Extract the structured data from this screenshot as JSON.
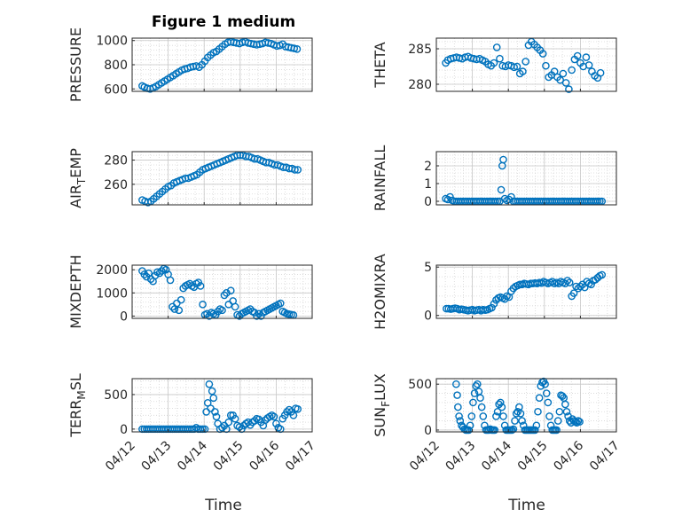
{
  "figure": {
    "title": "Figure 1 medium",
    "xlabel": "Time",
    "x_ticks": [
      "04/12",
      "04/13",
      "04/14",
      "04/15",
      "04/16",
      "04/17"
    ]
  },
  "chart_data": [
    {
      "type": "scatter",
      "title": "Figure 1 medium",
      "ylabel": "PRESSURE",
      "ylabel_html": [
        "PRESSURE"
      ],
      "xlim": [
        0,
        5
      ],
      "ylim": [
        580,
        1020
      ],
      "yticks": [
        600,
        800,
        1000
      ],
      "color": "#0072BD",
      "x": [
        0.28,
        0.34,
        0.42,
        0.5,
        0.58,
        0.66,
        0.74,
        0.82,
        0.9,
        0.98,
        1.06,
        1.14,
        1.22,
        1.3,
        1.38,
        1.46,
        1.54,
        1.62,
        1.7,
        1.78,
        1.86,
        1.94,
        2.02,
        2.1,
        2.18,
        2.26,
        2.34,
        2.42,
        2.5,
        2.58,
        2.66,
        2.74,
        2.82,
        2.9,
        2.98,
        3.06,
        3.14,
        3.22,
        3.3,
        3.38,
        3.46,
        3.54,
        3.62,
        3.7,
        3.78,
        3.86,
        3.94,
        4.02,
        4.1,
        4.18,
        4.26,
        4.34,
        4.42,
        4.5,
        4.58
      ],
      "y": [
        625,
        615,
        605,
        600,
        608,
        620,
        635,
        650,
        665,
        680,
        695,
        710,
        725,
        740,
        755,
        765,
        770,
        780,
        785,
        790,
        780,
        800,
        830,
        860,
        880,
        900,
        910,
        930,
        950,
        970,
        985,
        990,
        985,
        980,
        975,
        985,
        990,
        980,
        975,
        970,
        965,
        970,
        975,
        985,
        980,
        975,
        965,
        955,
        960,
        970,
        950,
        945,
        940,
        935,
        930
      ]
    },
    {
      "type": "scatter",
      "ylabel": "THETA",
      "xlim": [
        0,
        5
      ],
      "ylim": [
        279,
        286.5
      ],
      "yticks": [
        280,
        285
      ],
      "color": "#0072BD",
      "x": [
        0.26,
        0.32,
        0.4,
        0.48,
        0.56,
        0.64,
        0.72,
        0.8,
        0.88,
        0.96,
        1.04,
        1.12,
        1.2,
        1.28,
        1.36,
        1.44,
        1.52,
        1.6,
        1.68,
        1.76,
        1.84,
        1.92,
        2.0,
        2.08,
        2.16,
        2.24,
        2.32,
        2.4,
        2.48,
        2.56,
        2.64,
        2.72,
        2.8,
        2.88,
        2.96,
        3.04,
        3.12,
        3.2,
        3.28,
        3.36,
        3.44,
        3.52,
        3.6,
        3.68,
        3.76,
        3.84,
        3.92,
        4.0,
        4.08,
        4.16,
        4.24,
        4.32,
        4.4,
        4.48,
        4.56
      ],
      "y": [
        283.0,
        283.4,
        283.6,
        283.7,
        283.8,
        283.7,
        283.6,
        283.8,
        283.9,
        283.7,
        283.6,
        283.5,
        283.6,
        283.4,
        283.2,
        282.8,
        282.6,
        283.0,
        285.2,
        283.6,
        282.6,
        282.5,
        282.7,
        282.6,
        282.4,
        282.5,
        281.5,
        281.8,
        283.2,
        285.5,
        286.0,
        285.6,
        285.2,
        284.8,
        284.3,
        282.6,
        281.0,
        281.3,
        281.8,
        281.0,
        280.6,
        281.5,
        280.2,
        279.3,
        282.0,
        283.5,
        284.0,
        283.0,
        282.5,
        283.8,
        282.7,
        281.8,
        281.2,
        280.9,
        281.6
      ]
    },
    {
      "type": "scatter",
      "ylabel": "AIR_TEMP",
      "ylabel_html": [
        "AIR",
        "T",
        "EMP"
      ],
      "xlim": [
        0,
        5
      ],
      "ylim": [
        243,
        287
      ],
      "yticks": [
        260,
        280
      ],
      "color": "#0072BD",
      "x": [
        0.28,
        0.36,
        0.44,
        0.52,
        0.6,
        0.68,
        0.76,
        0.84,
        0.92,
        1.0,
        1.08,
        1.16,
        1.24,
        1.32,
        1.4,
        1.48,
        1.56,
        1.64,
        1.72,
        1.8,
        1.88,
        1.96,
        2.04,
        2.12,
        2.2,
        2.28,
        2.36,
        2.44,
        2.52,
        2.6,
        2.68,
        2.76,
        2.84,
        2.92,
        3.0,
        3.08,
        3.16,
        3.24,
        3.32,
        3.4,
        3.48,
        3.56,
        3.64,
        3.72,
        3.8,
        3.88,
        3.96,
        4.04,
        4.12,
        4.2,
        4.28,
        4.36,
        4.44,
        4.52,
        4.6
      ],
      "y": [
        247,
        246,
        245,
        246,
        248,
        250,
        252,
        254,
        256,
        258,
        259,
        261,
        262,
        263,
        264,
        265,
        265,
        266,
        267,
        268,
        270,
        272,
        273,
        274,
        275,
        276,
        277,
        278,
        279,
        280,
        281,
        282,
        283,
        284,
        284,
        284,
        283,
        283,
        282,
        281,
        281,
        280,
        279,
        278,
        278,
        277,
        276,
        276,
        275,
        274,
        274,
        273,
        273,
        272,
        272
      ]
    },
    {
      "type": "scatter",
      "ylabel": "RAINFALL",
      "xlim": [
        0,
        5
      ],
      "ylim": [
        -0.2,
        2.8
      ],
      "yticks": [
        0,
        1,
        2
      ],
      "color": "#0072BD",
      "x": [
        0.26,
        0.32,
        0.38,
        0.44,
        0.5,
        0.56,
        0.62,
        0.68,
        0.74,
        0.8,
        0.86,
        0.92,
        0.98,
        1.04,
        1.1,
        1.16,
        1.22,
        1.28,
        1.34,
        1.4,
        1.46,
        1.52,
        1.58,
        1.64,
        1.7,
        1.76,
        1.8,
        1.83,
        1.86,
        1.9,
        1.96,
        2.02,
        2.08,
        2.14,
        2.2,
        2.26,
        2.32,
        2.38,
        2.44,
        2.5,
        2.56,
        2.62,
        2.68,
        2.74,
        2.8,
        2.86,
        2.92,
        2.98,
        3.04,
        3.1,
        3.16,
        3.22,
        3.28,
        3.34,
        3.4,
        3.46,
        3.52,
        3.58,
        3.64,
        3.7,
        3.76,
        3.82,
        3.88,
        3.94,
        4.0,
        4.06,
        4.12,
        4.18,
        4.24,
        4.3,
        4.36,
        4.42,
        4.48,
        4.54,
        4.6
      ],
      "y": [
        0.15,
        0.1,
        0.25,
        0.05,
        0,
        0,
        0,
        0,
        0,
        0,
        0,
        0,
        0,
        0,
        0,
        0,
        0,
        0,
        0,
        0,
        0,
        0,
        0,
        0,
        0,
        0,
        0.65,
        2.0,
        2.35,
        0.15,
        0.05,
        0.1,
        0.25,
        0,
        0,
        0,
        0,
        0,
        0,
        0,
        0,
        0,
        0,
        0,
        0,
        0,
        0,
        0,
        0,
        0,
        0,
        0,
        0,
        0,
        0,
        0,
        0,
        0,
        0,
        0,
        0,
        0,
        0,
        0,
        0,
        0,
        0,
        0,
        0,
        0,
        0,
        0,
        0,
        0,
        0
      ]
    },
    {
      "type": "scatter",
      "ylabel": "MIXDEPTH",
      "xlim": [
        0,
        5
      ],
      "ylim": [
        -100,
        2200
      ],
      "yticks": [
        0,
        1000,
        2000
      ],
      "color": "#0072BD",
      "x": [
        0.28,
        0.34,
        0.4,
        0.46,
        0.52,
        0.58,
        0.64,
        0.7,
        0.76,
        0.82,
        0.88,
        0.94,
        1.0,
        1.06,
        1.12,
        1.18,
        1.24,
        1.3,
        1.36,
        1.42,
        1.48,
        1.54,
        1.6,
        1.66,
        1.72,
        1.78,
        1.84,
        1.9,
        1.96,
        2.02,
        2.08,
        2.14,
        2.2,
        2.26,
        2.32,
        2.38,
        2.44,
        2.5,
        2.56,
        2.62,
        2.68,
        2.74,
        2.8,
        2.86,
        2.92,
        2.98,
        3.04,
        3.1,
        3.16,
        3.22,
        3.28,
        3.34,
        3.4,
        3.46,
        3.52,
        3.58,
        3.64,
        3.7,
        3.76,
        3.82,
        3.88,
        3.94,
        4.0,
        4.06,
        4.12,
        4.18,
        4.24,
        4.3,
        4.36,
        4.42,
        4.48
      ],
      "y": [
        1950,
        1800,
        1700,
        1850,
        1600,
        1500,
        1750,
        1900,
        1850,
        1950,
        2050,
        2000,
        1800,
        1550,
        400,
        300,
        550,
        250,
        700,
        1200,
        1300,
        1350,
        1400,
        1300,
        1250,
        1400,
        1450,
        1300,
        500,
        50,
        100,
        0,
        150,
        100,
        50,
        200,
        300,
        250,
        900,
        1000,
        500,
        1100,
        650,
        400,
        50,
        0,
        100,
        150,
        200,
        250,
        300,
        200,
        150,
        0,
        100,
        0,
        150,
        200,
        250,
        300,
        350,
        400,
        450,
        500,
        550,
        200,
        150,
        100,
        80,
        60,
        40
      ]
    },
    {
      "type": "scatter",
      "ylabel": "H2OMIXRA",
      "xlim": [
        0,
        5
      ],
      "ylim": [
        -0.3,
        5.2
      ],
      "yticks": [
        0,
        5
      ],
      "color": "#0072BD",
      "x": [
        0.28,
        0.34,
        0.4,
        0.46,
        0.52,
        0.58,
        0.64,
        0.7,
        0.76,
        0.82,
        0.88,
        0.94,
        1.0,
        1.06,
        1.12,
        1.18,
        1.24,
        1.3,
        1.36,
        1.42,
        1.48,
        1.54,
        1.6,
        1.66,
        1.72,
        1.78,
        1.84,
        1.9,
        1.96,
        2.02,
        2.08,
        2.14,
        2.2,
        2.26,
        2.32,
        2.38,
        2.44,
        2.5,
        2.56,
        2.62,
        2.68,
        2.74,
        2.8,
        2.86,
        2.92,
        2.98,
        3.04,
        3.1,
        3.16,
        3.22,
        3.28,
        3.34,
        3.4,
        3.46,
        3.52,
        3.58,
        3.64,
        3.7,
        3.76,
        3.82,
        3.88,
        3.94,
        4.0,
        4.06,
        4.12,
        4.18,
        4.24,
        4.3,
        4.36,
        4.42,
        4.48,
        4.54,
        4.6
      ],
      "y": [
        0.7,
        0.7,
        0.65,
        0.7,
        0.75,
        0.7,
        0.6,
        0.65,
        0.6,
        0.55,
        0.5,
        0.55,
        0.6,
        0.5,
        0.55,
        0.6,
        0.5,
        0.6,
        0.55,
        0.6,
        0.7,
        0.8,
        1.2,
        1.6,
        1.8,
        1.9,
        1.8,
        1.7,
        2.0,
        1.9,
        2.5,
        2.8,
        3.0,
        3.1,
        3.2,
        3.2,
        3.3,
        3.25,
        3.2,
        3.3,
        3.3,
        3.35,
        3.3,
        3.4,
        3.35,
        3.5,
        3.4,
        3.3,
        3.4,
        3.5,
        3.3,
        3.4,
        3.3,
        3.5,
        3.4,
        3.3,
        3.6,
        3.4,
        2.0,
        2.3,
        3.0,
        2.8,
        3.0,
        3.2,
        2.9,
        3.5,
        3.3,
        3.2,
        3.6,
        3.7,
        3.9,
        4.1,
        4.2
      ]
    },
    {
      "type": "scatter",
      "ylabel": "TERR_MSL",
      "ylabel_html": [
        "TERR",
        "M",
        "SL"
      ],
      "xlim": [
        0,
        5
      ],
      "ylim": [
        -40,
        730
      ],
      "yticks": [
        0,
        500
      ],
      "color": "#0072BD",
      "x": [
        0.28,
        0.34,
        0.4,
        0.46,
        0.52,
        0.58,
        0.64,
        0.7,
        0.76,
        0.82,
        0.88,
        0.94,
        1.0,
        1.06,
        1.12,
        1.18,
        1.24,
        1.3,
        1.36,
        1.42,
        1.48,
        1.54,
        1.6,
        1.66,
        1.72,
        1.78,
        1.84,
        1.9,
        1.96,
        2.02,
        2.06,
        2.1,
        2.14,
        2.18,
        2.22,
        2.26,
        2.3,
        2.34,
        2.38,
        2.44,
        2.5,
        2.56,
        2.62,
        2.68,
        2.74,
        2.8,
        2.86,
        2.92,
        2.98,
        3.04,
        3.1,
        3.16,
        3.22,
        3.28,
        3.34,
        3.4,
        3.46,
        3.52,
        3.58,
        3.64,
        3.7,
        3.76,
        3.82,
        3.88,
        3.94,
        4.0,
        4.06,
        4.12,
        4.18,
        4.24,
        4.3,
        4.36,
        4.42,
        4.48,
        4.54,
        4.6
      ],
      "y": [
        0,
        0,
        0,
        0,
        0,
        0,
        0,
        0,
        0,
        0,
        0,
        0,
        0,
        0,
        0,
        0,
        0,
        0,
        0,
        0,
        0,
        0,
        0,
        0,
        0,
        20,
        0,
        0,
        0,
        0,
        250,
        380,
        650,
        300,
        550,
        450,
        250,
        180,
        80,
        0,
        20,
        50,
        0,
        100,
        200,
        200,
        150,
        50,
        30,
        0,
        50,
        80,
        100,
        60,
        100,
        120,
        150,
        140,
        100,
        50,
        130,
        160,
        180,
        200,
        180,
        80,
        20,
        0,
        150,
        200,
        250,
        280,
        250,
        200,
        300,
        290
      ]
    },
    {
      "type": "scatter",
      "ylabel": "SUN_FLUX",
      "ylabel_html": [
        "SUN",
        "F",
        "LUX"
      ],
      "xlim": [
        0,
        5
      ],
      "ylim": [
        -20,
        560
      ],
      "yticks": [
        0,
        500
      ],
      "color": "#0072BD",
      "x": [
        0.55,
        0.58,
        0.6,
        0.63,
        0.66,
        0.7,
        0.74,
        0.78,
        0.82,
        0.86,
        0.9,
        0.94,
        0.98,
        1.02,
        1.06,
        1.1,
        1.14,
        1.18,
        1.22,
        1.26,
        1.3,
        1.34,
        1.38,
        1.42,
        1.46,
        1.5,
        1.54,
        1.58,
        1.62,
        1.66,
        1.7,
        1.74,
        1.78,
        1.82,
        1.86,
        1.9,
        1.94,
        1.98,
        2.02,
        2.06,
        2.1,
        2.14,
        2.18,
        2.22,
        2.26,
        2.3,
        2.34,
        2.38,
        2.42,
        2.46,
        2.5,
        2.54,
        2.58,
        2.62,
        2.66,
        2.7,
        2.74,
        2.78,
        2.82,
        2.86,
        2.9,
        2.94,
        2.98,
        3.02,
        3.06,
        3.1,
        3.14,
        3.18,
        3.22,
        3.26,
        3.3,
        3.34,
        3.38,
        3.42,
        3.46,
        3.5,
        3.54,
        3.58,
        3.62,
        3.66,
        3.7,
        3.74,
        3.78,
        3.82,
        3.86,
        3.9,
        3.94,
        3.98
      ],
      "y": [
        500,
        380,
        250,
        150,
        100,
        50,
        30,
        10,
        0,
        0,
        0,
        50,
        150,
        300,
        400,
        480,
        500,
        420,
        350,
        250,
        150,
        50,
        0,
        0,
        0,
        10,
        0,
        0,
        0,
        150,
        200,
        280,
        300,
        250,
        150,
        50,
        0,
        0,
        0,
        0,
        0,
        10,
        100,
        180,
        200,
        250,
        180,
        100,
        50,
        0,
        0,
        0,
        0,
        0,
        0,
        0,
        0,
        50,
        200,
        350,
        480,
        520,
        530,
        500,
        400,
        300,
        150,
        50,
        0,
        0,
        0,
        0,
        100,
        200,
        380,
        370,
        350,
        280,
        200,
        150,
        100,
        80,
        120,
        100,
        90,
        80,
        100,
        90
      ]
    }
  ]
}
